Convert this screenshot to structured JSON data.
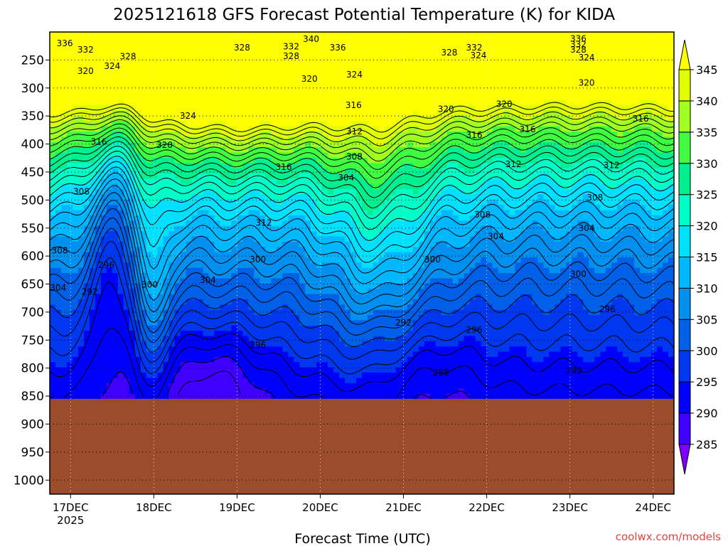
{
  "chart_data": {
    "type": "heatmap",
    "title": "2025121618 GFS Forecast Potential Temperature (K) for KIDA",
    "xlabel": "Forecast Time (UTC)",
    "ylabel": "",
    "credit": "coolwx.com/models",
    "credit_color": "#e8413c",
    "ground_color": "#9b4c2a",
    "ylim": [
      1025,
      200
    ],
    "yticks": [
      250,
      300,
      350,
      400,
      450,
      500,
      550,
      600,
      650,
      700,
      750,
      800,
      850,
      900,
      950,
      1000
    ],
    "ytick_labels": [
      "250",
      "300",
      "350",
      "400",
      "450",
      "500",
      "550",
      "600",
      "650",
      "700",
      "750",
      "800",
      "850",
      "900",
      "950",
      "1000"
    ],
    "xlim": [
      -0.25,
      7.25
    ],
    "xticks": [
      0,
      1,
      2,
      3,
      4,
      5,
      6,
      7
    ],
    "xtick_labels": [
      "17DEC",
      "18DEC",
      "19DEC",
      "20DEC",
      "21DEC",
      "22DEC",
      "23DEC",
      "24DEC"
    ],
    "xtick_sublabel": "2025",
    "ground_pressure": 855,
    "colorbar": {
      "levels": [
        285,
        290,
        295,
        300,
        305,
        310,
        315,
        320,
        325,
        330,
        335,
        340,
        345
      ],
      "labels": [
        "285",
        "290",
        "295",
        "300",
        "305",
        "310",
        "315",
        "320",
        "325",
        "330",
        "335",
        "340",
        "345"
      ],
      "colors": [
        "#8000ff",
        "#4000ff",
        "#0000ff",
        "#0038f0",
        "#0060e8",
        "#0090f0",
        "#00b8ff",
        "#00e0ff",
        "#00ffc8",
        "#00f090",
        "#40ff40",
        "#a0ff20",
        "#e0ff00",
        "#ffff00"
      ]
    },
    "contour_labels": [
      {
        "text": "336",
        "x": -0.07,
        "p": 220
      },
      {
        "text": "332",
        "x": 0.18,
        "p": 232
      },
      {
        "text": "320",
        "x": 0.18,
        "p": 270
      },
      {
        "text": "324",
        "x": 0.5,
        "p": 261
      },
      {
        "text": "328",
        "x": 0.69,
        "p": 244
      },
      {
        "text": "328",
        "x": 2.06,
        "p": 228
      },
      {
        "text": "332",
        "x": 2.65,
        "p": 226
      },
      {
        "text": "340",
        "x": 2.89,
        "p": 213
      },
      {
        "text": "336",
        "x": 3.21,
        "p": 228
      },
      {
        "text": "328",
        "x": 2.65,
        "p": 243
      },
      {
        "text": "320",
        "x": 2.87,
        "p": 284
      },
      {
        "text": "324",
        "x": 3.41,
        "p": 276
      },
      {
        "text": "324",
        "x": 1.41,
        "p": 350
      },
      {
        "text": "316",
        "x": 0.34,
        "p": 396
      },
      {
        "text": "320",
        "x": 1.13,
        "p": 402
      },
      {
        "text": "316",
        "x": 2.56,
        "p": 441
      },
      {
        "text": "308",
        "x": 0.13,
        "p": 485
      },
      {
        "text": "312",
        "x": 2.32,
        "p": 541
      },
      {
        "text": "308",
        "x": -0.13,
        "p": 590
      },
      {
        "text": "296",
        "x": 0.43,
        "p": 616
      },
      {
        "text": "304",
        "x": -0.15,
        "p": 657
      },
      {
        "text": "292",
        "x": 0.23,
        "p": 664
      },
      {
        "text": "300",
        "x": 0.95,
        "p": 651
      },
      {
        "text": "304",
        "x": 1.65,
        "p": 643
      },
      {
        "text": "300",
        "x": 2.25,
        "p": 606
      },
      {
        "text": "296",
        "x": 2.25,
        "p": 759
      },
      {
        "text": "316",
        "x": 3.4,
        "p": 331
      },
      {
        "text": "312",
        "x": 3.41,
        "p": 378
      },
      {
        "text": "308",
        "x": 3.41,
        "p": 423
      },
      {
        "text": "304",
        "x": 3.31,
        "p": 460
      },
      {
        "text": "320",
        "x": 4.51,
        "p": 338
      },
      {
        "text": "320",
        "x": 5.21,
        "p": 329
      },
      {
        "text": "316",
        "x": 4.85,
        "p": 384
      },
      {
        "text": "316",
        "x": 5.49,
        "p": 374
      },
      {
        "text": "312",
        "x": 5.32,
        "p": 436
      },
      {
        "text": "308",
        "x": 4.95,
        "p": 526
      },
      {
        "text": "304",
        "x": 5.11,
        "p": 565
      },
      {
        "text": "300",
        "x": 4.35,
        "p": 606
      },
      {
        "text": "292",
        "x": 4.0,
        "p": 719
      },
      {
        "text": "296",
        "x": 4.85,
        "p": 732
      },
      {
        "text": "288",
        "x": 4.45,
        "p": 808
      },
      {
        "text": "332",
        "x": 4.85,
        "p": 228
      },
      {
        "text": "328",
        "x": 4.55,
        "p": 237
      },
      {
        "text": "324",
        "x": 4.9,
        "p": 242
      },
      {
        "text": "336",
        "x": 6.1,
        "p": 212
      },
      {
        "text": "332",
        "x": 6.1,
        "p": 222
      },
      {
        "text": "328",
        "x": 6.1,
        "p": 232
      },
      {
        "text": "324",
        "x": 6.2,
        "p": 246
      },
      {
        "text": "320",
        "x": 6.2,
        "p": 291
      },
      {
        "text": "316",
        "x": 6.85,
        "p": 355
      },
      {
        "text": "312",
        "x": 6.5,
        "p": 438
      },
      {
        "text": "308",
        "x": 6.3,
        "p": 496
      },
      {
        "text": "304",
        "x": 6.2,
        "p": 550
      },
      {
        "text": "300",
        "x": 6.1,
        "p": 632
      },
      {
        "text": "296",
        "x": 6.45,
        "p": 695
      },
      {
        "text": "292",
        "x": 6.05,
        "p": 805
      }
    ]
  }
}
